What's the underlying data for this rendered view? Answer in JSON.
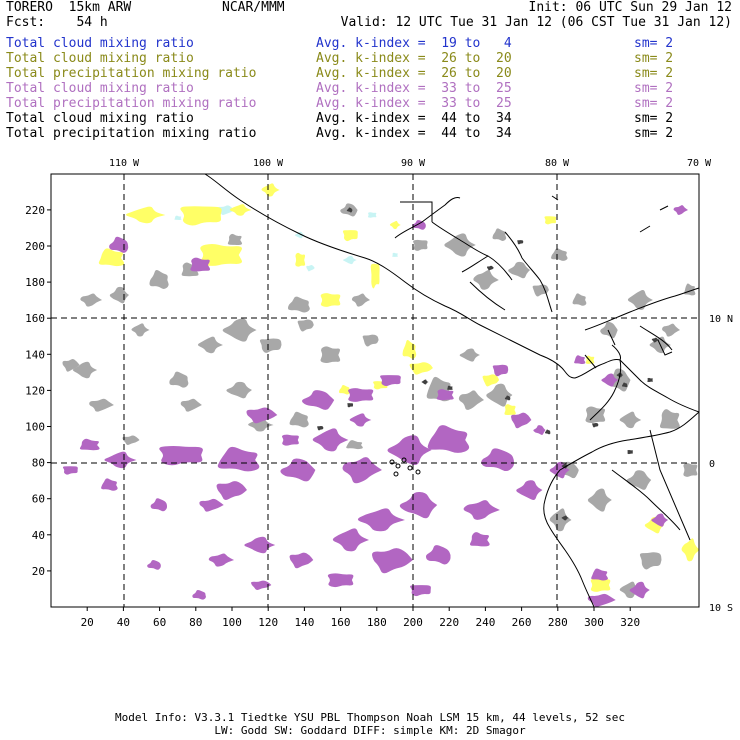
{
  "header": {
    "model_name": "TORERO  15km ARW",
    "org": "NCAR/MMM",
    "init": "Init: 06 UTC Sun 29 Jan 12",
    "fcst": "Fcst:    54 h",
    "valid": "Valid: 12 UTC Tue 31 Jan 12 (06 CST Tue 31 Jan 12)"
  },
  "legend": [
    {
      "field": "Total cloud mixing ratio",
      "kindex": "Avg. k-index =  19 to   4",
      "sm": "sm= 2",
      "color": "#2233cc"
    },
    {
      "field": "Total cloud mixing ratio",
      "kindex": "Avg. k-index =  26 to  20",
      "sm": "sm= 2",
      "color": "#8a8a1a"
    },
    {
      "field": "Total precipitation mixing ratio",
      "kindex": "Avg. k-index =  26 to  20",
      "sm": "sm= 2",
      "color": "#8a8a1a"
    },
    {
      "field": "Total cloud mixing ratio",
      "kindex": "Avg. k-index =  33 to  25",
      "sm": "sm= 2",
      "color": "#b070c0"
    },
    {
      "field": "Total precipitation mixing ratio",
      "kindex": "Avg. k-index =  33 to  25",
      "sm": "sm= 2",
      "color": "#b070c0"
    },
    {
      "field": "Total cloud mixing ratio",
      "kindex": "Avg. k-index =  44 to  34",
      "sm": "sm= 2",
      "color": "#000000"
    },
    {
      "field": "Total precipitation mixing ratio",
      "kindex": "Avg. k-index =  44 to  34",
      "sm": "sm= 2",
      "color": "#000000"
    }
  ],
  "map": {
    "x_ticks": [
      "20",
      "40",
      "60",
      "80",
      "100",
      "120",
      "140",
      "160",
      "180",
      "200",
      "220",
      "240",
      "260",
      "280",
      "300",
      "320"
    ],
    "y_ticks": [
      "20",
      "40",
      "60",
      "80",
      "100",
      "120",
      "140",
      "160",
      "180",
      "200",
      "220"
    ],
    "lon_labels": [
      "110 W",
      "100 W",
      "90 W",
      "80 W",
      "70 W"
    ],
    "lat_labels": [
      "10 N",
      "0",
      "10 S"
    ],
    "colors": {
      "light_cyan": "#c8f4f4",
      "yellow": "#ffff66",
      "purple": "#b266c2",
      "gray": "#a8a8a8",
      "dark": "#404040",
      "grid": "#000000"
    }
  },
  "footer": {
    "line1": "Model Info: V3.3.1   Tiedtke YSU PBL  Thompson    Noah LSM  15 km,   44 levels,   52 sec",
    "line2": "LW: Godd SW: Goddard DIFF: simple KM: 2D Smagor"
  }
}
